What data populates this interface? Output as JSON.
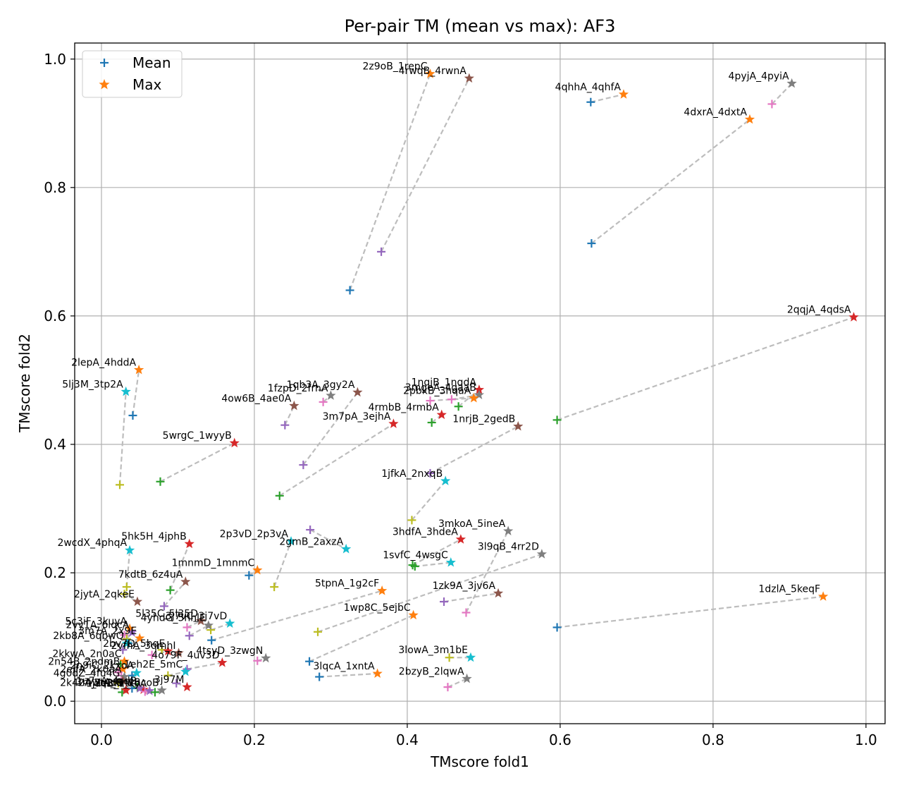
{
  "chart_data": {
    "type": "scatter",
    "title": "Per-pair TM (mean vs max): AF3",
    "xlabel": "TMscore fold1",
    "ylabel": "TMscore fold2",
    "xlim": [
      -0.035,
      1.025
    ],
    "ylim": [
      -0.035,
      1.025
    ],
    "xticks": [
      "0.0",
      "0.2",
      "0.4",
      "0.6",
      "0.8",
      "1.0"
    ],
    "yticks": [
      "0.0",
      "0.2",
      "0.4",
      "0.6",
      "0.8",
      "1.0"
    ],
    "grid": true,
    "legend": {
      "position": "top-left",
      "entries": [
        {
          "label": "Mean",
          "marker": "plus",
          "color": "#1f77b4"
        },
        {
          "label": "Max",
          "marker": "star",
          "color": "#ff7f0e"
        }
      ]
    },
    "palette": [
      "#1f77b4",
      "#ff7f0e",
      "#2ca02c",
      "#d62728",
      "#9467bd",
      "#8c564b",
      "#e377c2",
      "#7f7f7f",
      "#bcbd22",
      "#17becf"
    ],
    "pairs": [
      {
        "label": "2z9oB_1repC",
        "mean": [
          0.325,
          0.64
        ],
        "max": [
          0.43,
          0.977
        ],
        "color": "#ff7f0e",
        "mean_color": "#1f77b4"
      },
      {
        "label": "4rwqB_4rwnA",
        "mean": [
          0.366,
          0.7
        ],
        "max": [
          0.481,
          0.97
        ],
        "color": "#8c564b",
        "mean_color": "#9467bd"
      },
      {
        "label": "4qhhA_4qhfA",
        "mean": [
          0.64,
          0.933
        ],
        "max": [
          0.683,
          0.945
        ],
        "color": "#ff7f0e",
        "mean_color": "#1f77b4"
      },
      {
        "label": "4pyjA_4pyiA",
        "mean": [
          0.877,
          0.93
        ],
        "max": [
          0.903,
          0.962
        ],
        "color": "#7f7f7f",
        "mean_color": "#e377c2"
      },
      {
        "label": "4dxrA_4dxtA",
        "mean": [
          0.641,
          0.713
        ],
        "max": [
          0.848,
          0.906
        ],
        "color": "#ff7f0e",
        "mean_color": "#1f77b4"
      },
      {
        "label": "2qqjA_4qdsA",
        "mean": [
          0.596,
          0.438
        ],
        "max": [
          0.984,
          0.598
        ],
        "color": "#d62728",
        "mean_color": "#2ca02c"
      },
      {
        "label": "2lepA_4hddA",
        "mean": [
          0.041,
          0.445
        ],
        "max": [
          0.049,
          0.516
        ],
        "color": "#ff7f0e",
        "mean_color": "#1f77b4"
      },
      {
        "label": "5lj3M_3tp2A",
        "mean": [
          0.024,
          0.337
        ],
        "max": [
          0.032,
          0.482
        ],
        "color": "#17becf",
        "mean_color": "#bcbd22"
      },
      {
        "label": "1qb3A_3gy2A",
        "mean": [
          0.264,
          0.368
        ],
        "max": [
          0.335,
          0.481
        ],
        "color": "#8c564b",
        "mean_color": "#9467bd"
      },
      {
        "label": "1fzpD_2frhA",
        "mean": [
          0.29,
          0.466
        ],
        "max": [
          0.3,
          0.476
        ],
        "color": "#7f7f7f",
        "mean_color": "#e377c2"
      },
      {
        "label": "4ow6B_4ae0A",
        "mean": [
          0.24,
          0.43
        ],
        "max": [
          0.252,
          0.46
        ],
        "color": "#8c564b",
        "mean_color": "#9467bd"
      },
      {
        "label": "1nqjB_1nqdA",
        "mean": [
          0.467,
          0.459
        ],
        "max": [
          0.494,
          0.485
        ],
        "color": "#d62728",
        "mean_color": "#2ca02c"
      },
      {
        "label": "3mgeA_4gaaB",
        "mean": [
          0.458,
          0.47
        ],
        "max": [
          0.494,
          0.477
        ],
        "color": "#7f7f7f",
        "mean_color": "#e377c2"
      },
      {
        "label": "2pbkB_3hqaA",
        "mean": [
          0.43,
          0.468
        ],
        "max": [
          0.487,
          0.472
        ],
        "color": "#ff7f0e",
        "mean_color": "#e377c2"
      },
      {
        "label": "4rmbB_4rmbA",
        "mean": [
          0.432,
          0.434
        ],
        "max": [
          0.445,
          0.446
        ],
        "color": "#d62728",
        "mean_color": "#2ca02c"
      },
      {
        "label": "3m7pA_3ejhA",
        "mean": [
          0.233,
          0.32
        ],
        "max": [
          0.382,
          0.432
        ],
        "color": "#d62728",
        "mean_color": "#2ca02c"
      },
      {
        "label": "1nrjB_2gedB",
        "mean": [
          0.43,
          0.355
        ],
        "max": [
          0.545,
          0.428
        ],
        "color": "#8c564b",
        "mean_color": "#9467bd"
      },
      {
        "label": "5wrgC_1wyyB",
        "mean": [
          0.077,
          0.342
        ],
        "max": [
          0.174,
          0.402
        ],
        "color": "#d62728",
        "mean_color": "#2ca02c"
      },
      {
        "label": "1jfkA_2nxqB",
        "mean": [
          0.406,
          0.282
        ],
        "max": [
          0.45,
          0.343
        ],
        "color": "#17becf",
        "mean_color": "#bcbd22"
      },
      {
        "label": "2wcdX_4phqA",
        "mean": [
          0.033,
          0.178
        ],
        "max": [
          0.037,
          0.235
        ],
        "color": "#17becf",
        "mean_color": "#bcbd22"
      },
      {
        "label": "5hk5H_4jphB",
        "mean": [
          0.09,
          0.173
        ],
        "max": [
          0.115,
          0.245
        ],
        "color": "#d62728",
        "mean_color": "#2ca02c"
      },
      {
        "label": "2p3vD_2p3vA",
        "mean": [
          0.226,
          0.178
        ],
        "max": [
          0.248,
          0.249
        ],
        "color": "#17becf",
        "mean_color": "#bcbd22"
      },
      {
        "label": "2gmB_2axzA",
        "mean": [
          0.273,
          0.267
        ],
        "max": [
          0.32,
          0.237
        ],
        "color": "#17becf",
        "mean_color": "#9467bd"
      },
      {
        "label": "3hdfA_3hdeA",
        "mean": [
          0.407,
          0.212
        ],
        "max": [
          0.47,
          0.252
        ],
        "color": "#d62728",
        "mean_color": "#2ca02c"
      },
      {
        "label": "3mkoA_5ineA",
        "mean": [
          0.477,
          0.138
        ],
        "max": [
          0.532,
          0.265
        ],
        "color": "#7f7f7f",
        "mean_color": "#e377c2"
      },
      {
        "label": "3l9qB_4rr2D",
        "mean": [
          0.283,
          0.108
        ],
        "max": [
          0.576,
          0.229
        ],
        "color": "#7f7f7f",
        "mean_color": "#bcbd22"
      },
      {
        "label": "1svfC_4wsgC",
        "mean": [
          0.41,
          0.21
        ],
        "max": [
          0.457,
          0.216
        ],
        "color": "#17becf",
        "mean_color": "#2ca02c"
      },
      {
        "label": "1mnmD_1mnmC",
        "mean": [
          0.193,
          0.196
        ],
        "max": [
          0.204,
          0.204
        ],
        "color": "#ff7f0e",
        "mean_color": "#1f77b4"
      },
      {
        "label": "7kdtB_6z4uA",
        "mean": [
          0.082,
          0.148
        ],
        "max": [
          0.11,
          0.186
        ],
        "color": "#8c564b",
        "mean_color": "#9467bd"
      },
      {
        "label": "5tpnA_1g2cF",
        "mean": [
          0.144,
          0.095
        ],
        "max": [
          0.367,
          0.172
        ],
        "color": "#ff7f0e",
        "mean_color": "#1f77b4"
      },
      {
        "label": "1zk9A_3jv6A",
        "mean": [
          0.448,
          0.155
        ],
        "max": [
          0.519,
          0.168
        ],
        "color": "#8c564b",
        "mean_color": "#9467bd"
      },
      {
        "label": "1dzlA_5keqF",
        "mean": [
          0.596,
          0.115
        ],
        "max": [
          0.944,
          0.163
        ],
        "color": "#ff7f0e",
        "mean_color": "#1f77b4"
      },
      {
        "label": "2jytA_2qkeE",
        "mean": [
          0.03,
          0.167
        ],
        "max": [
          0.047,
          0.155
        ],
        "color": "#8c564b",
        "mean_color": "#bcbd22"
      },
      {
        "label": "1wp8C_5ejbC",
        "mean": [
          0.272,
          0.062
        ],
        "max": [
          0.408,
          0.134
        ],
        "color": "#ff7f0e",
        "mean_color": "#1f77b4"
      },
      {
        "label": "5l35C_5l35D",
        "mean": [
          0.112,
          0.115
        ],
        "max": [
          0.13,
          0.125
        ],
        "color": "#8c564b",
        "mean_color": "#e377c2"
      },
      {
        "label": "3j7vC_3j7vD",
        "mean": [
          0.143,
          0.111
        ],
        "max": [
          0.168,
          0.121
        ],
        "color": "#17becf",
        "mean_color": "#bcbd22"
      },
      {
        "label": "4yhdG_5hhlE",
        "mean": [
          0.115,
          0.102
        ],
        "max": [
          0.14,
          0.118
        ],
        "color": "#7f7f7f",
        "mean_color": "#9467bd"
      },
      {
        "label": "5c3iF_3kuyA",
        "mean": [
          0.03,
          0.103
        ],
        "max": [
          0.037,
          0.113
        ],
        "color": "#ff7f0e",
        "mean_color": "#e377c2"
      },
      {
        "label": "2vy1A_6lqcA",
        "mean": [
          0.033,
          0.097
        ],
        "max": [
          0.04,
          0.107
        ],
        "color": "#9467bd",
        "mean_color": "#bcbd22"
      },
      {
        "label": "3m7A_2x9E",
        "mean": [
          0.035,
          0.09
        ],
        "max": [
          0.05,
          0.098
        ],
        "color": "#ff7f0e",
        "mean_color": "#1f77b4"
      },
      {
        "label": "2kb8A_6qbwQ",
        "mean": [
          0.028,
          0.08
        ],
        "max": [
          0.033,
          0.09
        ],
        "color": "#17becf",
        "mean_color": "#9467bd"
      },
      {
        "label": "2vfhA_3qmhI",
        "mean": [
          0.079,
          0.08
        ],
        "max": [
          0.101,
          0.075
        ],
        "color": "#8c564b",
        "mean_color": "#bcbd22"
      },
      {
        "label": "2bv7D_5hqE",
        "mean": [
          0.066,
          0.072
        ],
        "max": [
          0.087,
          0.078
        ],
        "color": "#d62728",
        "mean_color": "#e377c2"
      },
      {
        "label": "4tsyD_3zwgN",
        "mean": [
          0.204,
          0.063
        ],
        "max": [
          0.215,
          0.067
        ],
        "color": "#7f7f7f",
        "mean_color": "#e377c2"
      },
      {
        "label": "3lowA_3m1bE",
        "mean": [
          0.455,
          0.068
        ],
        "max": [
          0.483,
          0.068
        ],
        "color": "#17becf",
        "mean_color": "#bcbd22"
      },
      {
        "label": "3lqcA_1xntA",
        "mean": [
          0.285,
          0.038
        ],
        "max": [
          0.361,
          0.043
        ],
        "color": "#ff7f0e",
        "mean_color": "#1f77b4"
      },
      {
        "label": "2bzyB_2lqwA",
        "mean": [
          0.453,
          0.022
        ],
        "max": [
          0.478,
          0.035
        ],
        "color": "#7f7f7f",
        "mean_color": "#e377c2"
      },
      {
        "label": "4o79F_4uv3D",
        "mean": [
          0.112,
          0.05
        ],
        "max": [
          0.158,
          0.06
        ],
        "color": "#d62728",
        "mean_color": "#9467bd"
      },
      {
        "label": "1eh2E_5mC",
        "mean": [
          0.087,
          0.04
        ],
        "max": [
          0.11,
          0.046
        ],
        "color": "#17becf",
        "mean_color": "#bcbd22"
      },
      {
        "label": "2kkwA_2n0aC",
        "mean": [
          0.025,
          0.058
        ],
        "max": [
          0.03,
          0.062
        ],
        "color": "#ff7f0e",
        "mean_color": "#2ca02c"
      },
      {
        "label": "2n54B_2ndmB",
        "mean": [
          0.022,
          0.045
        ],
        "max": [
          0.028,
          0.05
        ],
        "color": "#ff7f0e",
        "mean_color": "#e377c2"
      },
      {
        "label": "2n9iC_2kxoA",
        "mean": [
          0.04,
          0.04
        ],
        "max": [
          0.046,
          0.044
        ],
        "color": "#17becf",
        "mean_color": "#1f77b4"
      },
      {
        "label": "2eifA_2k0aA",
        "mean": [
          0.026,
          0.04
        ],
        "max": [
          0.03,
          0.038
        ],
        "color": "#7f7f7f",
        "mean_color": "#e377c2"
      },
      {
        "label": "4g0dZ_4fu4G",
        "mean": [
          0.022,
          0.028
        ],
        "max": [
          0.028,
          0.032
        ],
        "color": "#8c564b",
        "mean_color": "#bcbd22"
      },
      {
        "label": "3mwtA_6rwB",
        "mean": [
          0.047,
          0.022
        ],
        "max": [
          0.055,
          0.018
        ],
        "color": "#d62728",
        "mean_color": "#2ca02c"
      },
      {
        "label": "1u7vA_4sdB",
        "mean": [
          0.04,
          0.02
        ],
        "max": [
          0.05,
          0.02
        ],
        "color": "#9467bd",
        "mean_color": "#1f77b4"
      },
      {
        "label": "2k42A_1wd9",
        "mean": [
          0.027,
          0.014
        ],
        "max": [
          0.032,
          0.017
        ],
        "color": "#d62728",
        "mean_color": "#2ca02c"
      },
      {
        "label": "1jaeB_1tkyA",
        "mean": [
          0.057,
          0.015
        ],
        "max": [
          0.063,
          0.016
        ],
        "color": "#9467bd",
        "mean_color": "#e377c2"
      },
      {
        "label": "2q2tB_2hcoB",
        "mean": [
          0.07,
          0.014
        ],
        "max": [
          0.079,
          0.017
        ],
        "color": "#7f7f7f",
        "mean_color": "#2ca02c"
      },
      {
        "label": "3j97M",
        "mean": [
          0.098,
          0.028
        ],
        "max": [
          0.112,
          0.022
        ],
        "color": "#d62728",
        "mean_color": "#9467bd"
      }
    ]
  }
}
